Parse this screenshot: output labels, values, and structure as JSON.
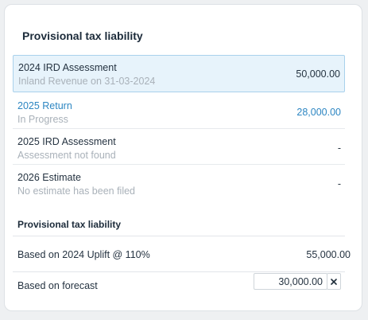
{
  "card": {
    "title": "Provisional tax liability"
  },
  "rows": [
    {
      "primary": "2024 IRD Assessment",
      "secondary": "Inland Revenue on 31-03-2024",
      "amount": "50,000.00"
    },
    {
      "primary": "2025 Return",
      "secondary": "In Progress",
      "amount": "28,000.00"
    },
    {
      "primary": "2025 IRD Assessment",
      "secondary": "Assessment not found",
      "amount": "-"
    },
    {
      "primary": "2026 Estimate",
      "secondary": "No estimate has been filed",
      "amount": "-"
    }
  ],
  "liability": {
    "title": "Provisional tax liability",
    "uplift": {
      "label": "Based on 2024 Uplift @ 110%",
      "amount": "55,000.00"
    },
    "forecast": {
      "label": "Based on forecast",
      "value": "30,000.00"
    }
  },
  "colors": {
    "accent_link": "#2d86c2",
    "selected_bg": "#e7f3fb",
    "selected_border": "#a9d1ec",
    "muted_text": "#a9b1b9"
  },
  "icons": {
    "clear": "close-icon"
  }
}
